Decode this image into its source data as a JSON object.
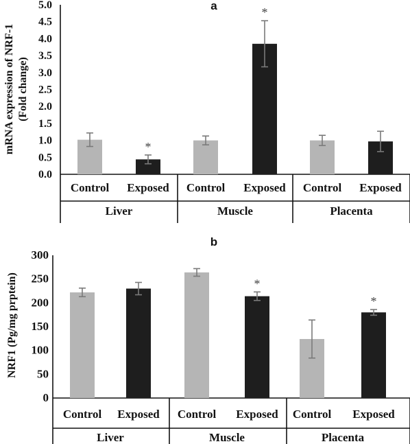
{
  "colors": {
    "control": "#b5b5b5",
    "exposed": "#1e1e1e",
    "error_bar": "#7a7a7a",
    "axis": "#111111"
  },
  "chart_data": [
    {
      "type": "bar",
      "title": "a",
      "ylabel_lines": [
        "mRNA expression of NRF-1",
        "(Fold change)"
      ],
      "ylim": [
        0,
        5
      ],
      "yticks": [
        "0.0",
        "0.5",
        "1.0",
        "1.5",
        "2.0",
        "2.5",
        "3.0",
        "3.5",
        "4.0",
        "4.5",
        "5.0"
      ],
      "groups": [
        "Liver",
        "Muscle",
        "Placenta"
      ],
      "categories": [
        "Control",
        "Exposed",
        "Control",
        "Exposed",
        "Control",
        "Exposed"
      ],
      "values": [
        1.02,
        0.44,
        1.0,
        3.85,
        1.0,
        0.97
      ],
      "errors": [
        0.2,
        0.13,
        0.13,
        0.68,
        0.15,
        0.3
      ],
      "significant": [
        false,
        true,
        false,
        true,
        false,
        false
      ],
      "significance_marker": "*",
      "grid": false
    },
    {
      "type": "bar",
      "title": "b",
      "ylabel": "NRF1  (Pg/mg prptein)",
      "ylim": [
        0,
        300
      ],
      "yticks": [
        "0",
        "50",
        "100",
        "150",
        "200",
        "250",
        "300"
      ],
      "groups": [
        "Liver",
        "Muscle",
        "Placenta"
      ],
      "categories": [
        "Control",
        "Exposed",
        "Control",
        "Exposed",
        "Control",
        "Exposed"
      ],
      "values": [
        222,
        230,
        264,
        214,
        124,
        180
      ],
      "errors": [
        9,
        13,
        8,
        9,
        40,
        6
      ],
      "significant": [
        false,
        false,
        false,
        true,
        false,
        true
      ],
      "significance_marker": "*",
      "grid": false
    }
  ]
}
